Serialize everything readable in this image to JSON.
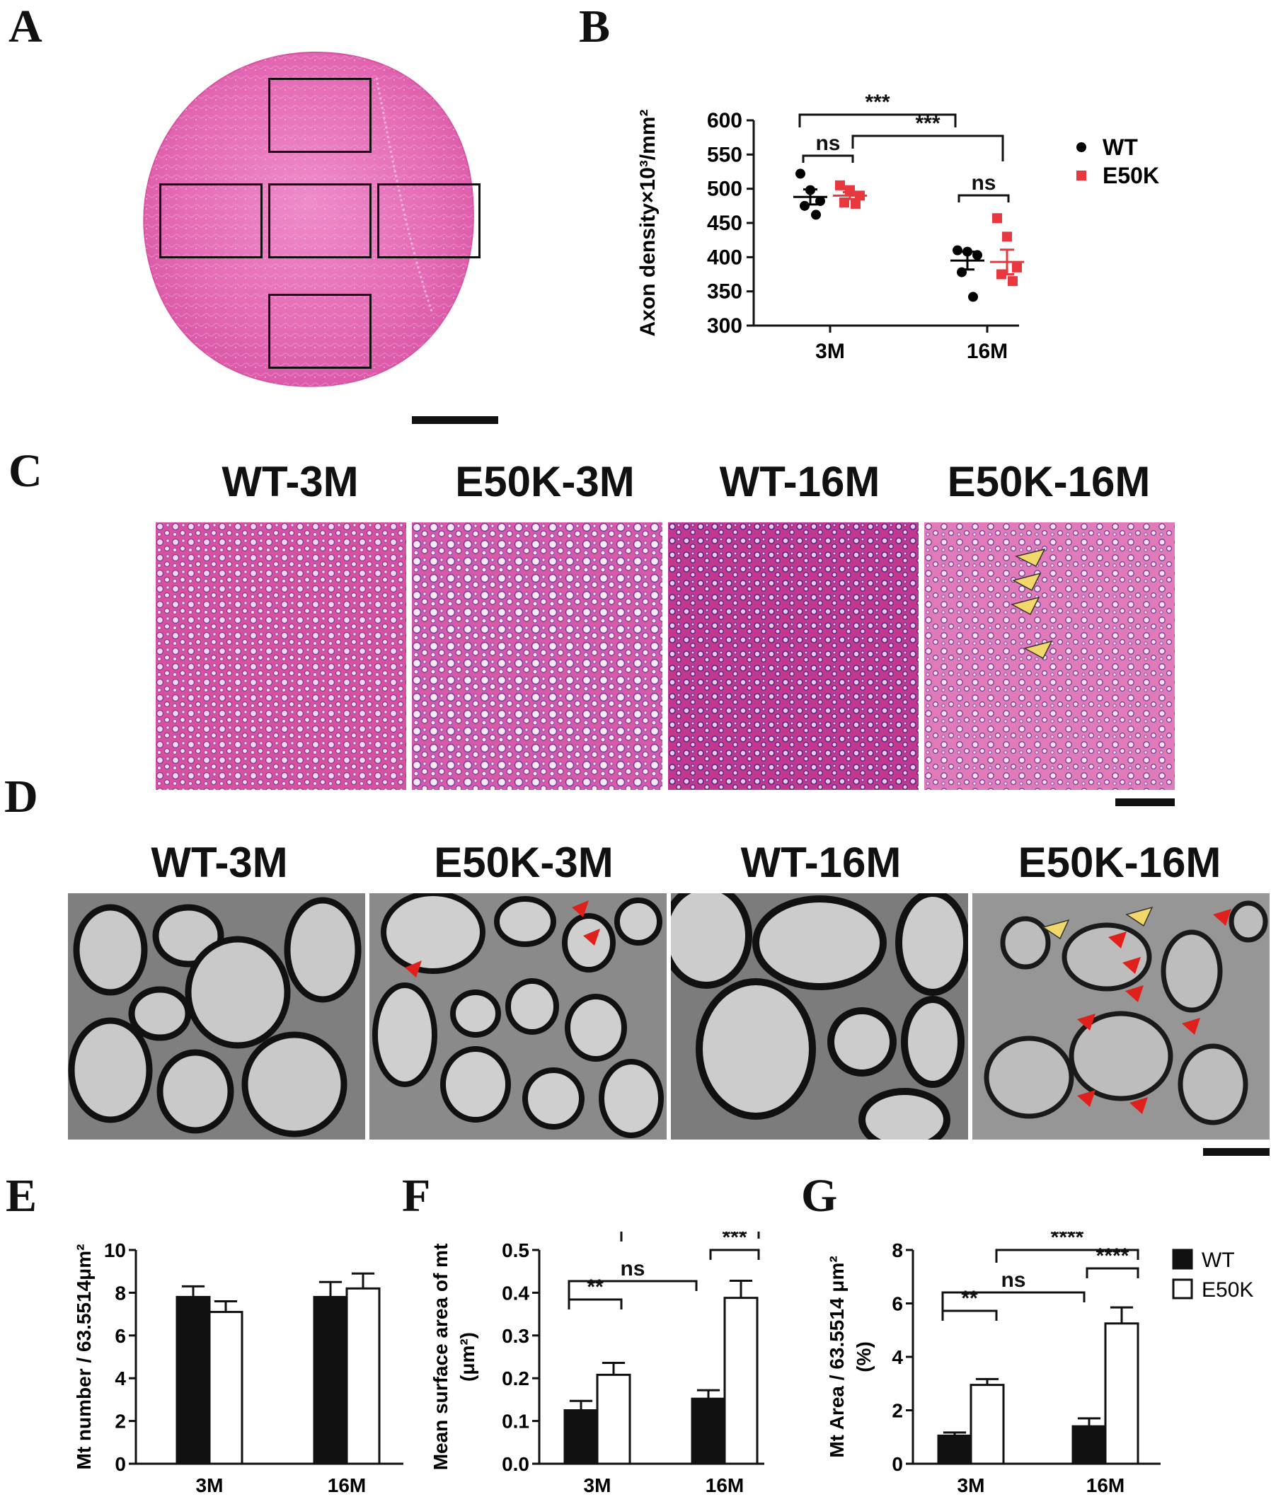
{
  "panels": {
    "a": {
      "letter": "A"
    },
    "b": {
      "letter": "B"
    },
    "c": {
      "letter": "C"
    },
    "d": {
      "letter": "D"
    },
    "e": {
      "letter": "E"
    },
    "f": {
      "letter": "F"
    },
    "g": {
      "letter": "G"
    }
  },
  "micrograph_labels": {
    "c": [
      "WT-3M",
      "E50K-3M",
      "WT-16M",
      "E50K-16M"
    ],
    "d": [
      "WT-3M",
      "E50K-3M",
      "WT-16M",
      "E50K-16M"
    ]
  },
  "colors": {
    "wt": "#000000",
    "e50k": "#e8383d",
    "he_pink": "#e36fb3",
    "em_gray": "#8c8c8c",
    "arrow_red": "#e0201a",
    "arrow_yellow": "#f2d76b"
  },
  "chart_data": [
    {
      "id": "B",
      "type": "scatter",
      "ylabel": "Axon density×10³/mm²",
      "ylim": [
        300,
        600
      ],
      "yticks": [
        300,
        350,
        400,
        450,
        500,
        550,
        600
      ],
      "categories": [
        "3M",
        "16M"
      ],
      "legend_position": "right",
      "series": [
        {
          "name": "WT",
          "color": "#000000",
          "marker": "circle",
          "points": {
            "3M": [
              522,
              498,
              482,
              475,
              462
            ],
            "16M": [
              410,
              408,
              403,
              378,
              342
            ]
          },
          "mean": {
            "3M": 488,
            "16M": 395
          },
          "sem": {
            "3M": 11,
            "16M": 13
          }
        },
        {
          "name": "E50K",
          "color": "#e8383d",
          "marker": "square",
          "points": {
            "3M": [
              505,
              498,
              490,
              480,
              478
            ],
            "16M": [
              457,
              430,
              385,
              375,
              365
            ]
          },
          "mean": {
            "3M": 490,
            "16M": 393
          },
          "sem": {
            "3M": 5,
            "16M": 18
          }
        }
      ],
      "annotations": [
        "***",
        "***",
        "ns",
        "ns"
      ]
    },
    {
      "id": "E",
      "type": "bar",
      "ylabel": "Mt number / 63.5514μm²",
      "ylim": [
        0,
        10
      ],
      "yticks": [
        0,
        2,
        4,
        6,
        8,
        10
      ],
      "categories": [
        "3M",
        "16M"
      ],
      "series": [
        {
          "name": "WT",
          "values": [
            7.8,
            7.8
          ],
          "errors": [
            0.5,
            0.7
          ]
        },
        {
          "name": "E50K",
          "values": [
            7.1,
            8.2
          ],
          "errors": [
            0.5,
            0.7
          ]
        }
      ]
    },
    {
      "id": "F",
      "type": "bar",
      "ylabel": "Mean surface area of mt",
      "ylabel2": "(μm²)",
      "ylim": [
        0.0,
        0.5
      ],
      "yticks": [
        "0.0",
        "0.1",
        "0.2",
        "0.3",
        "0.4",
        "0.5"
      ],
      "categories": [
        "3M",
        "16M"
      ],
      "series": [
        {
          "name": "WT",
          "values": [
            0.125,
            0.152
          ],
          "errors": [
            0.022,
            0.02
          ]
        },
        {
          "name": "E50K",
          "values": [
            0.208,
            0.388
          ],
          "errors": [
            0.028,
            0.04
          ]
        }
      ],
      "annotations": [
        "**",
        "ns",
        "***",
        "***"
      ]
    },
    {
      "id": "G",
      "type": "bar",
      "ylabel": "Mt Area / 63.5514 μm²",
      "ylabel2": "(%)",
      "ylim": [
        0,
        8
      ],
      "yticks": [
        0,
        2,
        4,
        6,
        8
      ],
      "categories": [
        "3M",
        "16M"
      ],
      "legend_position": "top-right",
      "series": [
        {
          "name": "WT",
          "values": [
            1.05,
            1.4
          ],
          "errors": [
            0.12,
            0.3
          ]
        },
        {
          "name": "E50K",
          "values": [
            2.95,
            5.25
          ],
          "errors": [
            0.22,
            0.6
          ]
        }
      ],
      "annotations": [
        "**",
        "ns",
        "****",
        "****"
      ]
    }
  ]
}
